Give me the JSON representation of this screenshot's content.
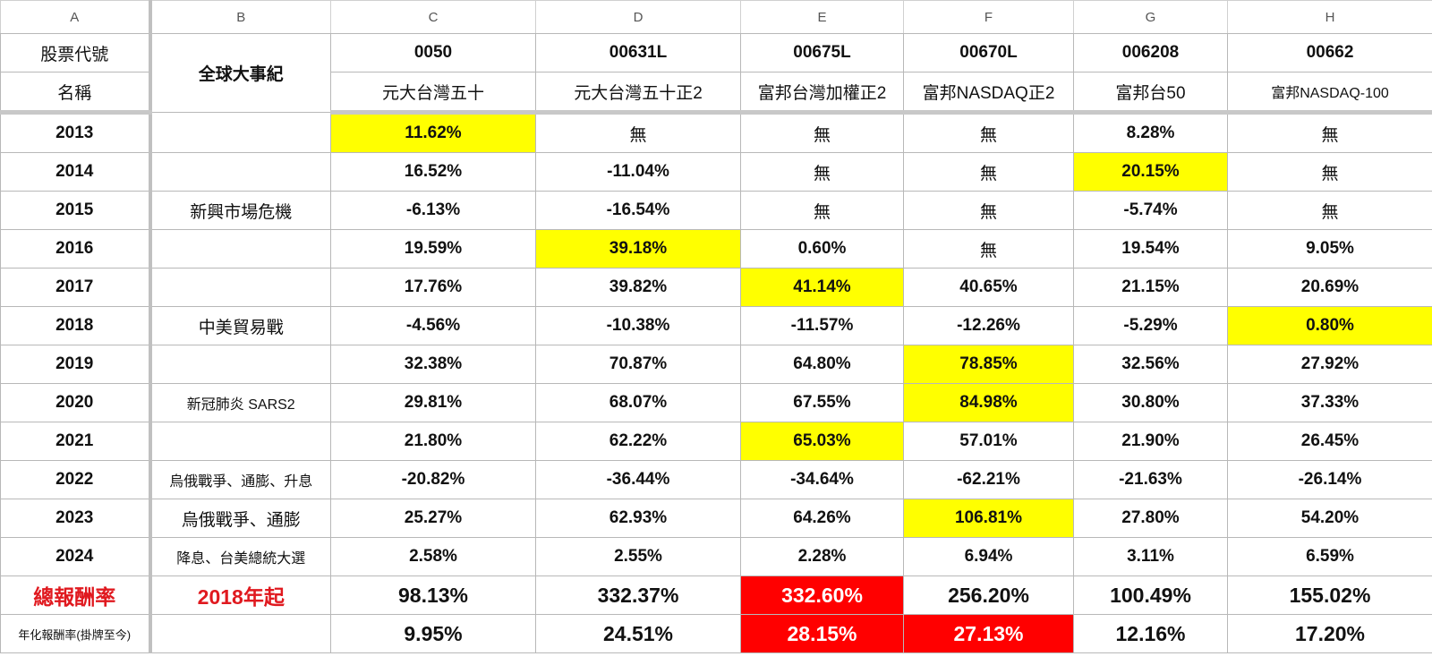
{
  "columns": [
    "A",
    "B",
    "C",
    "D",
    "E",
    "F",
    "G",
    "H"
  ],
  "header": {
    "code_label": "股票代號",
    "name_label": "名稱",
    "event_label": "全球大事紀",
    "codes": [
      "0050",
      "00631L",
      "00675L",
      "00670L",
      "006208",
      "00662"
    ],
    "names": [
      "元大台灣五十",
      "元大台灣五十正2",
      "富邦台灣加權正2",
      "富邦NASDAQ正2",
      "富邦台50",
      "富邦NASDAQ-100"
    ]
  },
  "rows": [
    {
      "year": "2013",
      "event": "",
      "values": [
        "11.62%",
        "無",
        "無",
        "無",
        "8.28%",
        "無"
      ],
      "highlight": 0
    },
    {
      "year": "2014",
      "event": "",
      "values": [
        "16.52%",
        "-11.04%",
        "無",
        "無",
        "20.15%",
        "無"
      ],
      "highlight": 4
    },
    {
      "year": "2015",
      "event": "新興市場危機",
      "values": [
        "-6.13%",
        "-16.54%",
        "無",
        "無",
        "-5.74%",
        "無"
      ],
      "highlight": -1
    },
    {
      "year": "2016",
      "event": "",
      "values": [
        "19.59%",
        "39.18%",
        "0.60%",
        "無",
        "19.54%",
        "9.05%"
      ],
      "highlight": 1
    },
    {
      "year": "2017",
      "event": "",
      "values": [
        "17.76%",
        "39.82%",
        "41.14%",
        "40.65%",
        "21.15%",
        "20.69%"
      ],
      "highlight": 2
    },
    {
      "year": "2018",
      "event": "中美貿易戰",
      "values": [
        "-4.56%",
        "-10.38%",
        "-11.57%",
        "-12.26%",
        "-5.29%",
        "0.80%"
      ],
      "highlight": 5
    },
    {
      "year": "2019",
      "event": "",
      "values": [
        "32.38%",
        "70.87%",
        "64.80%",
        "78.85%",
        "32.56%",
        "27.92%"
      ],
      "highlight": 3
    },
    {
      "year": "2020",
      "event": "新冠肺炎 SARS2",
      "values": [
        "29.81%",
        "68.07%",
        "67.55%",
        "84.98%",
        "30.80%",
        "37.33%"
      ],
      "highlight": 3
    },
    {
      "year": "2021",
      "event": "",
      "values": [
        "21.80%",
        "62.22%",
        "65.03%",
        "57.01%",
        "21.90%",
        "26.45%"
      ],
      "highlight": 2
    },
    {
      "year": "2022",
      "event": "烏俄戰爭、通膨、升息",
      "values": [
        "-20.82%",
        "-36.44%",
        "-34.64%",
        "-62.21%",
        "-21.63%",
        "-26.14%"
      ],
      "highlight": -1
    },
    {
      "year": "2023",
      "event": "烏俄戰爭、通膨",
      "values": [
        "25.27%",
        "62.93%",
        "64.26%",
        "106.81%",
        "27.80%",
        "54.20%"
      ],
      "highlight": 3
    },
    {
      "year": "2024",
      "event": "降息、台美總統大選",
      "values": [
        "2.58%",
        "2.55%",
        "2.28%",
        "6.94%",
        "3.11%",
        "6.59%"
      ],
      "highlight": -1
    }
  ],
  "total": {
    "label": "總報酬率",
    "note": "2018年起",
    "values": [
      "98.13%",
      "332.37%",
      "332.60%",
      "256.20%",
      "100.49%",
      "155.02%"
    ]
  },
  "annual": {
    "label": "年化報酬率(掛牌至今)",
    "note": "",
    "values": [
      "9.95%",
      "24.51%",
      "28.15%",
      "27.13%",
      "12.16%",
      "17.20%"
    ]
  },
  "colors": {
    "highlight_yellow": "#ffff00",
    "highlight_red": "#ff0000",
    "label_red": "#e0191f",
    "grid": "#b8b8b8"
  }
}
